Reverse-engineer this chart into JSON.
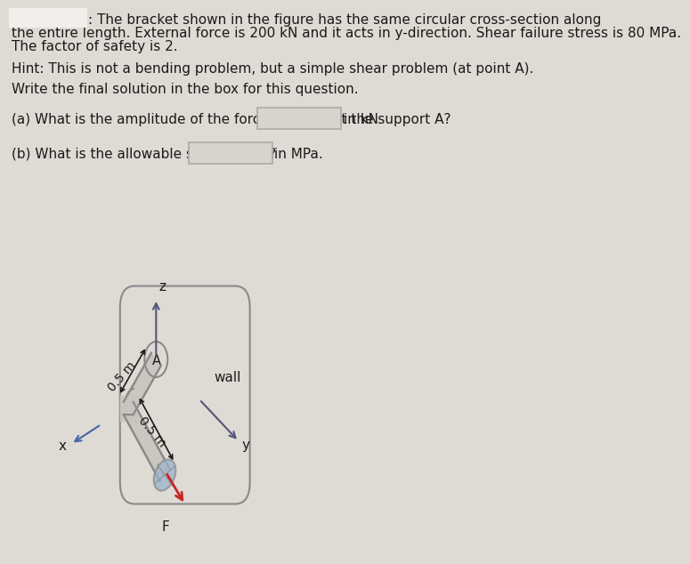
{
  "bg_color": "#dedbd5",
  "text_color": "#1a1a1a",
  "title_line1": ": The bracket shown in the figure has the same circular cross-section along",
  "title_line2": "the entire length. External force is 200 kN and it acts in y-direction. Shear failure stress is 80 MPa.",
  "title_line3": "The factor of safety is 2.",
  "hint_line": "Hint: This is not a bending problem, but a simple shear problem (at point A).",
  "write_line": "Write the final solution in the box for this question.",
  "qa_line": "(a) What is the amplitude of the force reaction at the support A?",
  "qa_unit": "in kN",
  "qb_line": "(b) What is the allowable shear stress?",
  "qb_unit": "in MPa.",
  "wall_label": "wall",
  "axis_z": "z",
  "axis_y": "y",
  "axis_x": "x",
  "label_A": "A",
  "label_F": "F",
  "dim_upper": "0.5 m",
  "dim_lower": "0.5 m",
  "bracket_color": "#8a8a8a",
  "bracket_fill": "#c8c4be",
  "ellipse_fill": "#9ab4cc",
  "arrow_dark": "#555577",
  "arrow_red": "#cc2222",
  "arrow_blue": "#4466aa",
  "box_edge": "#aaaaaa",
  "box_fill": "#d8d5cf"
}
